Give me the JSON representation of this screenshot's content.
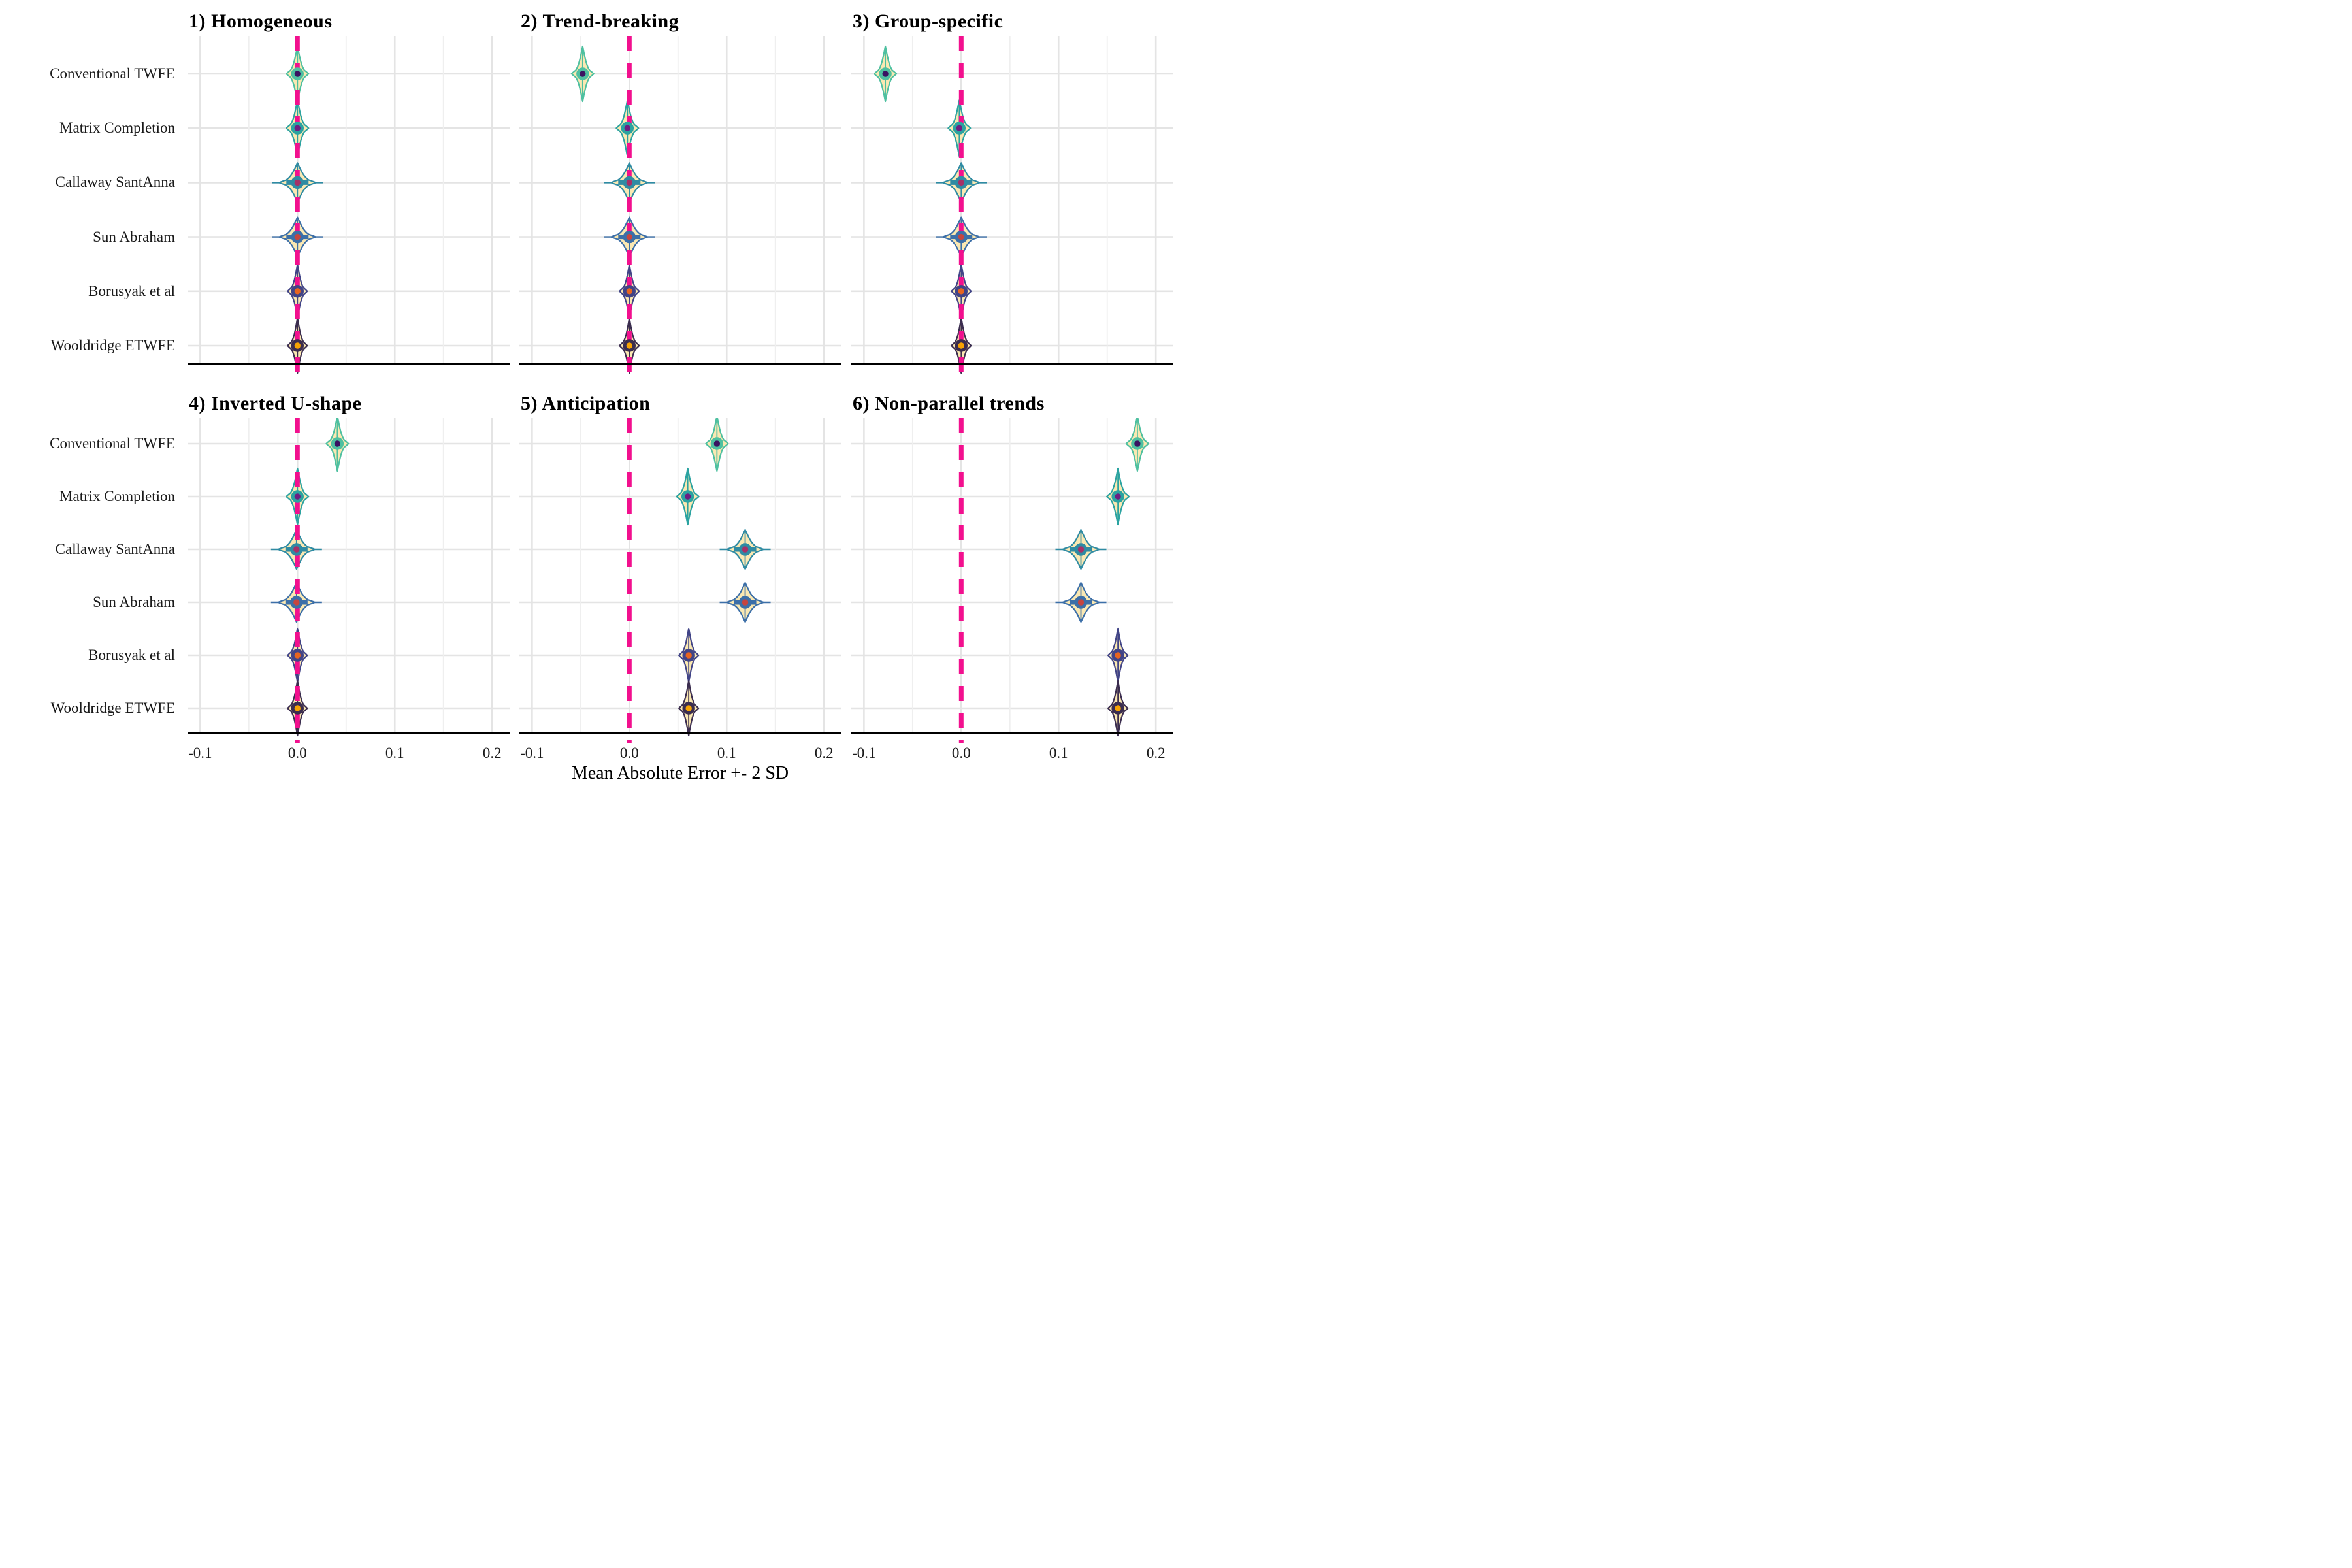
{
  "x_axis_title": "Mean Absolute Error +- 2 SD",
  "chart_data": {
    "type": "violin",
    "orientation": "horizontal",
    "title": "",
    "xlabel": "Mean Absolute Error +- 2 SD",
    "categories": [
      "Conventional TWFE",
      "Matrix Completion",
      "Callaway SantAnna",
      "Sun Abraham",
      "Borusyak et al",
      "Wooldridge ETWFE"
    ],
    "x_ticks": [
      -0.1,
      0.0,
      0.1,
      0.2
    ],
    "x_tick_labels": [
      "-0.1",
      "0.0",
      "0.1",
      "0.2"
    ],
    "minor_ticks": [
      -0.05,
      0.05,
      0.15
    ],
    "xlim": [
      -0.113,
      0.218
    ],
    "reference_line_x": 0.0,
    "reference_line_color": "#F2108E",
    "grid": true,
    "violin_fill": "#FAE8B2",
    "grid_major_color": "#E4E4E4",
    "grid_minor_color": "#EFEFEF",
    "axis_line_color": "#000000",
    "estimators": [
      {
        "name": "Conventional TWFE",
        "outline_color": "#4EC0A0",
        "point_color": "#3A1261",
        "crossbar": false
      },
      {
        "name": "Matrix Completion",
        "outline_color": "#2BA3A1",
        "point_color": "#6E1E81",
        "crossbar": false
      },
      {
        "name": "Callaway SantAnna",
        "outline_color": "#2F8BA3",
        "point_color": "#A53167",
        "crossbar": true
      },
      {
        "name": "Sun Abraham",
        "outline_color": "#3C6FA8",
        "point_color": "#C64540",
        "crossbar": true
      },
      {
        "name": "Borusyak et al",
        "outline_color": "#414487",
        "point_color": "#E8651F",
        "crossbar": false
      },
      {
        "name": "Wooldridge ETWFE",
        "outline_color": "#3B2D4F",
        "point_color": "#F7A303",
        "crossbar": false
      }
    ],
    "facets": [
      {
        "title": "1) Homogeneous",
        "means": [
          0.0,
          0.0,
          0.0,
          0.0,
          0.0,
          0.0
        ]
      },
      {
        "title": "2) Trend-breaking",
        "means": [
          -0.048,
          -0.002,
          0.0,
          0.0,
          0.0,
          0.0
        ]
      },
      {
        "title": "3) Group-specific",
        "means": [
          -0.078,
          -0.002,
          0.0,
          0.0,
          0.0,
          0.0
        ]
      },
      {
        "title": "4) Inverted U-shape",
        "means": [
          0.041,
          0.0,
          -0.001,
          -0.001,
          0.0,
          0.0
        ]
      },
      {
        "title": "5) Anticipation",
        "means": [
          0.09,
          0.06,
          0.119,
          0.119,
          0.061,
          0.061
        ]
      },
      {
        "title": "6) Non-parallel trends",
        "means": [
          0.181,
          0.161,
          0.123,
          0.123,
          0.161,
          0.161
        ]
      }
    ]
  }
}
